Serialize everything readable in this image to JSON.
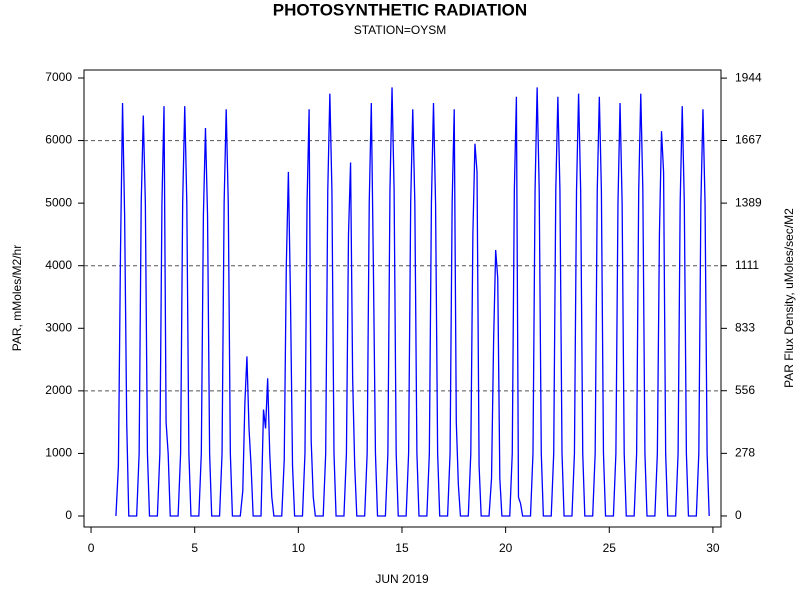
{
  "chart_data": {
    "type": "line",
    "title": "PHOTOSYNTHETIC RADIATION",
    "subtitle": "STATION=OYSM",
    "x_label": "JUN 2019",
    "y_label": "PAR, mMoles/M2/hr",
    "y2_label": "PAR Flux Density, uMoles/sec/M2",
    "xlim": [
      -0.34,
      30.39
    ],
    "xticks": [
      0,
      5,
      10,
      15,
      20,
      25,
      30
    ],
    "ylim": [
      -176,
      7128
    ],
    "yticks": [
      0,
      1000,
      2000,
      3000,
      4000,
      5000,
      6000,
      7000
    ],
    "y2lim": [
      -49,
      1980
    ],
    "y2ticks": [
      0,
      278,
      556,
      833,
      1111,
      1389,
      1667,
      1944
    ],
    "grid_lines": [
      2000,
      4000,
      6000
    ],
    "x": [
      1.2,
      1.32,
      1.42,
      1.52,
      1.62,
      1.72,
      1.82,
      2.2,
      2.32,
      2.42,
      2.52,
      2.62,
      2.72,
      2.82,
      3.2,
      3.32,
      3.42,
      3.52,
      3.62,
      3.72,
      3.82,
      4.2,
      4.32,
      4.42,
      4.52,
      4.62,
      4.72,
      4.82,
      5.2,
      5.32,
      5.42,
      5.52,
      5.62,
      5.72,
      5.82,
      6.2,
      6.32,
      6.42,
      6.52,
      6.62,
      6.72,
      6.82,
      7.2,
      7.32,
      7.42,
      7.52,
      7.62,
      7.72,
      7.82,
      8.2,
      8.32,
      8.42,
      8.52,
      8.62,
      8.72,
      8.82,
      9.2,
      9.32,
      9.42,
      9.52,
      9.62,
      9.72,
      9.82,
      10.2,
      10.32,
      10.42,
      10.52,
      10.62,
      10.72,
      10.82,
      11.2,
      11.32,
      11.42,
      11.52,
      11.62,
      11.72,
      11.82,
      12.2,
      12.32,
      12.42,
      12.52,
      12.62,
      12.72,
      12.82,
      13.2,
      13.32,
      13.42,
      13.52,
      13.62,
      13.72,
      13.82,
      14.2,
      14.32,
      14.42,
      14.52,
      14.62,
      14.72,
      14.82,
      15.2,
      15.32,
      15.42,
      15.52,
      15.62,
      15.72,
      15.82,
      16.2,
      16.32,
      16.42,
      16.52,
      16.62,
      16.72,
      16.82,
      17.2,
      17.32,
      17.42,
      17.52,
      17.62,
      17.72,
      17.82,
      18.2,
      18.32,
      18.42,
      18.52,
      18.62,
      18.72,
      18.82,
      19.2,
      19.32,
      19.42,
      19.52,
      19.62,
      19.72,
      19.82,
      20.2,
      20.32,
      20.42,
      20.52,
      20.62,
      20.72,
      20.82,
      21.2,
      21.32,
      21.42,
      21.52,
      21.62,
      21.72,
      21.82,
      22.2,
      22.32,
      22.42,
      22.52,
      22.62,
      22.72,
      22.82,
      23.2,
      23.32,
      23.42,
      23.52,
      23.62,
      23.72,
      23.82,
      24.2,
      24.32,
      24.42,
      24.52,
      24.62,
      24.72,
      24.82,
      25.2,
      25.32,
      25.42,
      25.52,
      25.62,
      25.72,
      25.82,
      26.2,
      26.32,
      26.42,
      26.52,
      26.62,
      26.72,
      26.82,
      27.2,
      27.32,
      27.42,
      27.52,
      27.62,
      27.72,
      27.82,
      28.2,
      28.32,
      28.42,
      28.52,
      28.62,
      28.72,
      28.82,
      29.2,
      29.32,
      29.42,
      29.52,
      29.62,
      29.72,
      29.82
    ],
    "series": [
      {
        "color": "#0000ff",
        "values": [
          0,
          800,
          4200,
          6600,
          4800,
          1500,
          0,
          0,
          1000,
          5000,
          6400,
          5000,
          1000,
          0,
          0,
          1000,
          5000,
          6550,
          1500,
          1000,
          0,
          0,
          1000,
          5000,
          6550,
          5000,
          1000,
          0,
          0,
          1000,
          4800,
          6200,
          4800,
          1000,
          0,
          0,
          1000,
          5000,
          6500,
          5000,
          1000,
          0,
          0,
          400,
          1800,
          2550,
          1400,
          800,
          0,
          0,
          1700,
          1400,
          2200,
          1000,
          300,
          0,
          0,
          900,
          4000,
          5500,
          3500,
          800,
          0,
          0,
          1000,
          5000,
          6500,
          1200,
          300,
          0,
          0,
          1000,
          5200,
          6750,
          5200,
          1000,
          0,
          0,
          1000,
          4500,
          5650,
          2200,
          800,
          0,
          0,
          1000,
          5000,
          6600,
          4000,
          1000,
          0,
          0,
          1000,
          5200,
          6850,
          5200,
          1000,
          0,
          0,
          1000,
          5000,
          6500,
          5000,
          1000,
          0,
          0,
          1000,
          5000,
          6600,
          5000,
          1000,
          0,
          0,
          1000,
          5000,
          6500,
          1500,
          500,
          0,
          0,
          1000,
          4500,
          5950,
          5500,
          800,
          0,
          0,
          600,
          2800,
          4250,
          3800,
          600,
          0,
          0,
          1000,
          5200,
          6700,
          300,
          200,
          0,
          0,
          1000,
          5200,
          6850,
          5200,
          1000,
          0,
          0,
          1000,
          5200,
          6700,
          5200,
          1000,
          0,
          0,
          1000,
          5200,
          6750,
          5200,
          1000,
          0,
          0,
          1000,
          5200,
          6700,
          5200,
          1000,
          0,
          0,
          1000,
          5000,
          6600,
          5000,
          1000,
          0,
          0,
          1000,
          5200,
          6750,
          5200,
          1000,
          0,
          0,
          1000,
          4500,
          6150,
          5500,
          1000,
          0,
          0,
          1000,
          5000,
          6550,
          5000,
          1000,
          0,
          0,
          1000,
          5000,
          6500,
          5000,
          1000,
          0
        ]
      }
    ]
  }
}
